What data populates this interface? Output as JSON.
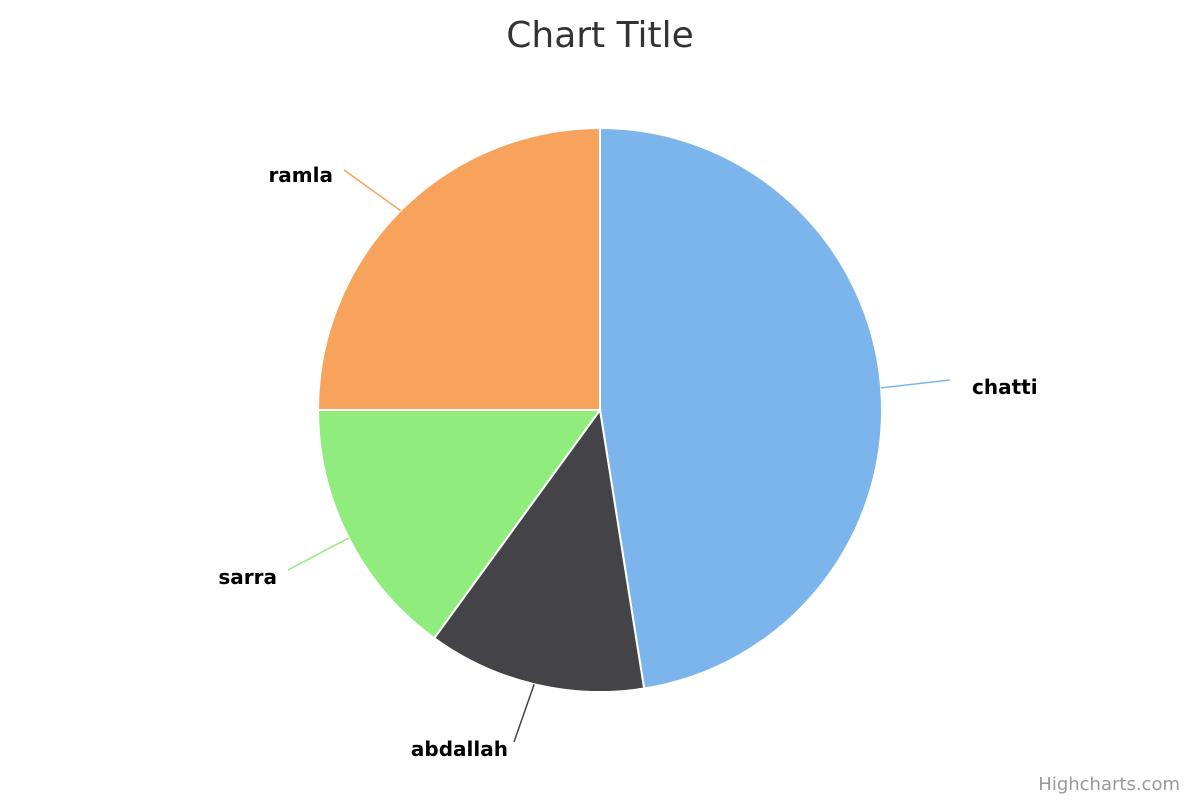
{
  "chart_data": {
    "type": "pie",
    "title": "Chart Title",
    "slices": [
      {
        "name": "chatti",
        "value": 47.5,
        "color": "#7cb5ec"
      },
      {
        "name": "abdallah",
        "value": 12.5,
        "color": "#434348"
      },
      {
        "name": "sarra",
        "value": 15.0,
        "color": "#90ed7d"
      },
      {
        "name": "ramla",
        "value": 25.0,
        "color": "#f7a35c"
      }
    ],
    "start_angle_deg": 0,
    "direction": "clockwise"
  },
  "credits": "Highcharts.com"
}
